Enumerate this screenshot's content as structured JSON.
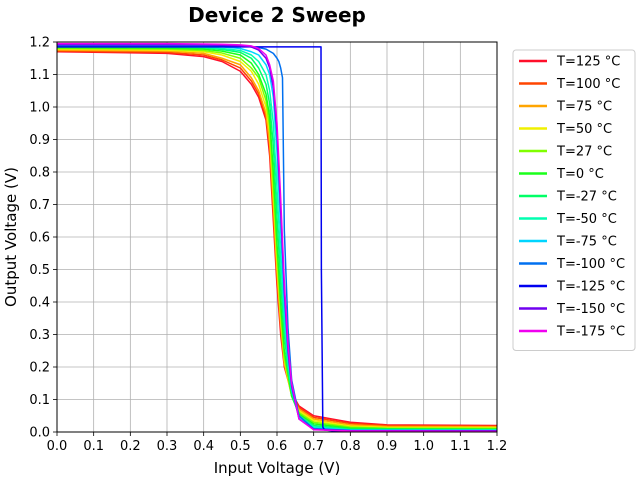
{
  "chart_data": {
    "type": "line",
    "title": "Device 2 Sweep",
    "xlabel": "Input Voltage (V)",
    "ylabel": "Output Voltage (V)",
    "xlim": [
      0.0,
      1.2
    ],
    "ylim": [
      0.0,
      1.2
    ],
    "xticks": [
      "0.0",
      "0.1",
      "0.2",
      "0.3",
      "0.4",
      "0.5",
      "0.6",
      "0.7",
      "0.8",
      "0.9",
      "1.0",
      "1.1",
      "1.2"
    ],
    "yticks": [
      "0.0",
      "0.1",
      "0.2",
      "0.3",
      "0.4",
      "0.5",
      "0.6",
      "0.7",
      "0.8",
      "0.9",
      "1.0",
      "1.1",
      "1.2"
    ],
    "grid": true,
    "legend_position": "outside-right-top",
    "series": [
      {
        "name": "T=125 °C",
        "color": "#ff0f2a",
        "x": [
          0.0,
          0.3,
          0.4,
          0.45,
          0.5,
          0.53,
          0.55,
          0.57,
          0.58,
          0.59,
          0.6,
          0.61,
          0.62,
          0.64,
          0.66,
          0.7,
          0.8,
          0.9,
          1.2
        ],
        "y": [
          1.17,
          1.165,
          1.155,
          1.14,
          1.11,
          1.07,
          1.03,
          0.96,
          0.85,
          0.65,
          0.45,
          0.3,
          0.2,
          0.12,
          0.08,
          0.05,
          0.03,
          0.022,
          0.02
        ]
      },
      {
        "name": "T=100 °C",
        "color": "#ff4500",
        "x": [
          0.0,
          0.3,
          0.4,
          0.45,
          0.5,
          0.53,
          0.55,
          0.57,
          0.58,
          0.59,
          0.6,
          0.61,
          0.62,
          0.64,
          0.66,
          0.7,
          0.8,
          0.9,
          1.2
        ],
        "y": [
          1.172,
          1.168,
          1.16,
          1.145,
          1.12,
          1.08,
          1.04,
          0.97,
          0.87,
          0.67,
          0.47,
          0.32,
          0.21,
          0.12,
          0.075,
          0.045,
          0.026,
          0.02,
          0.018
        ]
      },
      {
        "name": "T=75 °C",
        "color": "#ffa500",
        "x": [
          0.0,
          0.3,
          0.4,
          0.45,
          0.5,
          0.53,
          0.55,
          0.57,
          0.58,
          0.59,
          0.6,
          0.61,
          0.62,
          0.64,
          0.66,
          0.7,
          0.8,
          0.9,
          1.2
        ],
        "y": [
          1.175,
          1.172,
          1.165,
          1.15,
          1.13,
          1.09,
          1.05,
          0.98,
          0.89,
          0.7,
          0.49,
          0.33,
          0.21,
          0.11,
          0.07,
          0.04,
          0.022,
          0.017,
          0.016
        ]
      },
      {
        "name": "T=50 °C",
        "color": "#f0f000",
        "x": [
          0.0,
          0.3,
          0.4,
          0.45,
          0.5,
          0.53,
          0.55,
          0.57,
          0.58,
          0.59,
          0.6,
          0.61,
          0.62,
          0.64,
          0.66,
          0.7,
          0.8,
          0.9,
          1.2
        ],
        "y": [
          1.178,
          1.175,
          1.17,
          1.16,
          1.14,
          1.11,
          1.07,
          1.0,
          0.92,
          0.73,
          0.52,
          0.35,
          0.22,
          0.11,
          0.065,
          0.035,
          0.018,
          0.014,
          0.013
        ]
      },
      {
        "name": "T=27 °C",
        "color": "#80ff00",
        "x": [
          0.0,
          0.3,
          0.4,
          0.45,
          0.5,
          0.53,
          0.55,
          0.57,
          0.58,
          0.59,
          0.6,
          0.61,
          0.62,
          0.64,
          0.66,
          0.7,
          0.8,
          0.9,
          1.2
        ],
        "y": [
          1.18,
          1.178,
          1.174,
          1.166,
          1.15,
          1.12,
          1.09,
          1.02,
          0.94,
          0.76,
          0.55,
          0.37,
          0.23,
          0.11,
          0.06,
          0.03,
          0.015,
          0.012,
          0.011
        ]
      },
      {
        "name": "T=0 °C",
        "color": "#1aff1a",
        "x": [
          0.0,
          0.3,
          0.4,
          0.45,
          0.5,
          0.53,
          0.55,
          0.57,
          0.58,
          0.59,
          0.6,
          0.61,
          0.62,
          0.64,
          0.66,
          0.7,
          0.8,
          0.9,
          1.2
        ],
        "y": [
          1.183,
          1.181,
          1.178,
          1.172,
          1.16,
          1.135,
          1.1,
          1.04,
          0.97,
          0.8,
          0.58,
          0.4,
          0.25,
          0.11,
          0.055,
          0.025,
          0.012,
          0.01,
          0.009
        ]
      },
      {
        "name": "T=-27 °C",
        "color": "#00ff66",
        "x": [
          0.0,
          0.3,
          0.4,
          0.45,
          0.5,
          0.53,
          0.55,
          0.57,
          0.58,
          0.59,
          0.6,
          0.61,
          0.62,
          0.63,
          0.64,
          0.66,
          0.7,
          0.8,
          1.2
        ],
        "y": [
          1.185,
          1.184,
          1.182,
          1.177,
          1.168,
          1.15,
          1.12,
          1.07,
          1.01,
          0.88,
          0.66,
          0.46,
          0.3,
          0.19,
          0.12,
          0.05,
          0.02,
          0.009,
          0.007
        ]
      },
      {
        "name": "T=-50 °C",
        "color": "#00ffb0",
        "x": [
          0.0,
          0.3,
          0.4,
          0.45,
          0.5,
          0.53,
          0.55,
          0.57,
          0.58,
          0.59,
          0.6,
          0.61,
          0.62,
          0.63,
          0.64,
          0.66,
          0.7,
          0.8,
          1.2
        ],
        "y": [
          1.187,
          1.186,
          1.184,
          1.18,
          1.174,
          1.16,
          1.14,
          1.1,
          1.05,
          0.95,
          0.75,
          0.53,
          0.34,
          0.21,
          0.13,
          0.05,
          0.016,
          0.007,
          0.006
        ]
      },
      {
        "name": "T=-75 °C",
        "color": "#00d5ff",
        "x": [
          0.0,
          0.3,
          0.4,
          0.45,
          0.5,
          0.53,
          0.55,
          0.57,
          0.58,
          0.59,
          0.6,
          0.61,
          0.62,
          0.63,
          0.64,
          0.66,
          0.7,
          0.8,
          1.2
        ],
        "y": [
          1.19,
          1.189,
          1.188,
          1.185,
          1.18,
          1.17,
          1.16,
          1.13,
          1.1,
          1.03,
          0.86,
          0.62,
          0.39,
          0.23,
          0.13,
          0.045,
          0.012,
          0.006,
          0.005
        ]
      },
      {
        "name": "T=-100 °C",
        "color": "#0070f0",
        "x": [
          0.0,
          0.4,
          0.5,
          0.55,
          0.57,
          0.59,
          0.6,
          0.605,
          0.61,
          0.615,
          0.62,
          0.63,
          0.64,
          0.66,
          0.7,
          0.8,
          1.2
        ],
        "y": [
          1.19,
          1.19,
          1.188,
          1.183,
          1.178,
          1.165,
          1.15,
          1.14,
          1.12,
          1.09,
          0.62,
          0.32,
          0.16,
          0.05,
          0.01,
          0.005,
          0.004
        ]
      },
      {
        "name": "T=-125 °C",
        "color": "#0000f0",
        "x": [
          0.0,
          0.5,
          0.6,
          0.65,
          0.7,
          0.72,
          0.721,
          0.725,
          0.73,
          0.75,
          0.8,
          1.2
        ],
        "y": [
          1.185,
          1.185,
          1.185,
          1.185,
          1.185,
          1.185,
          0.5,
          0.015,
          0.006,
          0.004,
          0.003,
          0.003
        ]
      },
      {
        "name": "T=-150 °C",
        "color": "#7000f0",
        "x": [
          0.0,
          0.3,
          0.4,
          0.45,
          0.5,
          0.53,
          0.55,
          0.57,
          0.58,
          0.59,
          0.6,
          0.61,
          0.62,
          0.63,
          0.64,
          0.66,
          0.7,
          0.8,
          1.2
        ],
        "y": [
          1.192,
          1.192,
          1.191,
          1.19,
          1.188,
          1.185,
          1.175,
          1.15,
          1.12,
          1.06,
          0.92,
          0.68,
          0.43,
          0.25,
          0.14,
          0.04,
          0.008,
          0.004,
          0.003
        ]
      },
      {
        "name": "T=-175 °C",
        "color": "#f000f0",
        "x": [
          0.0,
          0.3,
          0.4,
          0.45,
          0.5,
          0.53,
          0.55,
          0.57,
          0.58,
          0.59,
          0.6,
          0.61,
          0.62,
          0.63,
          0.64,
          0.66,
          0.7,
          0.8,
          1.2
        ],
        "y": [
          1.195,
          1.195,
          1.194,
          1.193,
          1.191,
          1.188,
          1.18,
          1.16,
          1.13,
          1.08,
          0.95,
          0.72,
          0.46,
          0.27,
          0.15,
          0.04,
          0.007,
          0.003,
          0.002
        ]
      }
    ]
  }
}
